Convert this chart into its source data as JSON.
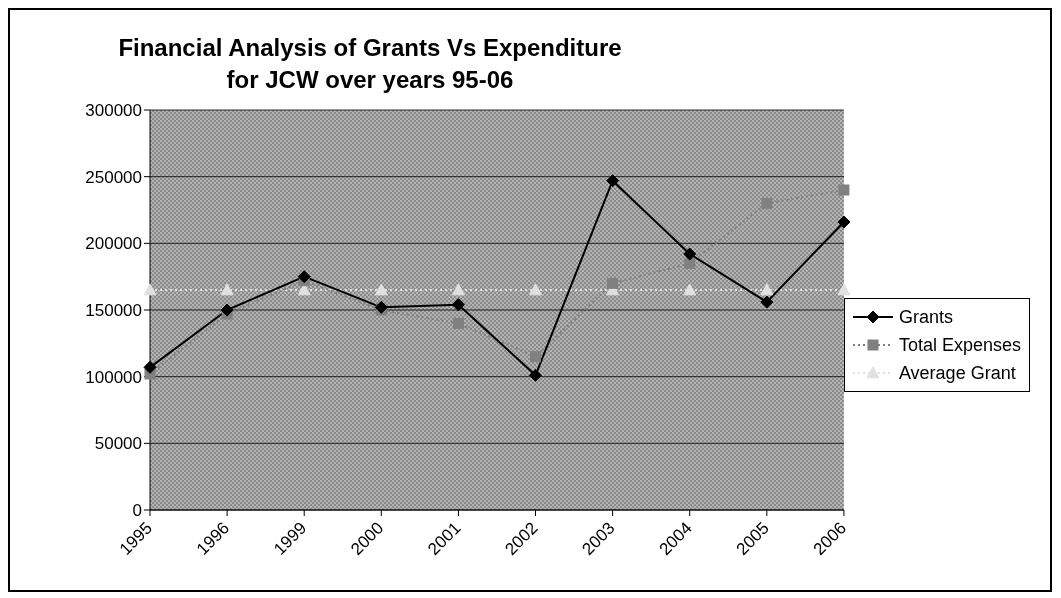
{
  "chart_data": {
    "type": "line",
    "title": "Financial Analysis of Grants Vs Expenditure\nfor JCW over years 95-06",
    "categories": [
      "1995",
      "1996",
      "1999",
      "2000",
      "2001",
      "2002",
      "2003",
      "2004",
      "2005",
      "2006"
    ],
    "series": [
      {
        "name": "Grants",
        "color": "#000000",
        "marker": "diamond",
        "line_style": "solid",
        "values": [
          107000,
          150000,
          175000,
          152000,
          154000,
          101000,
          247000,
          192000,
          156000,
          216000
        ]
      },
      {
        "name": "Total Expenses",
        "color": "#808080",
        "marker": "square",
        "line_style": "dotted",
        "values": [
          102000,
          147000,
          172000,
          150000,
          140000,
          115000,
          170000,
          185000,
          230000,
          240000
        ]
      },
      {
        "name": "Average Grant",
        "color": "#e0e0e0",
        "marker": "triangle",
        "line_style": "dotted",
        "values": [
          165000,
          165000,
          165000,
          165000,
          165000,
          165000,
          165000,
          165000,
          165000,
          165000
        ]
      }
    ],
    "ylim": [
      0,
      300000
    ],
    "yticks": [
      0,
      50000,
      100000,
      150000,
      200000,
      250000,
      300000
    ],
    "grid": "y",
    "legend": "right"
  }
}
